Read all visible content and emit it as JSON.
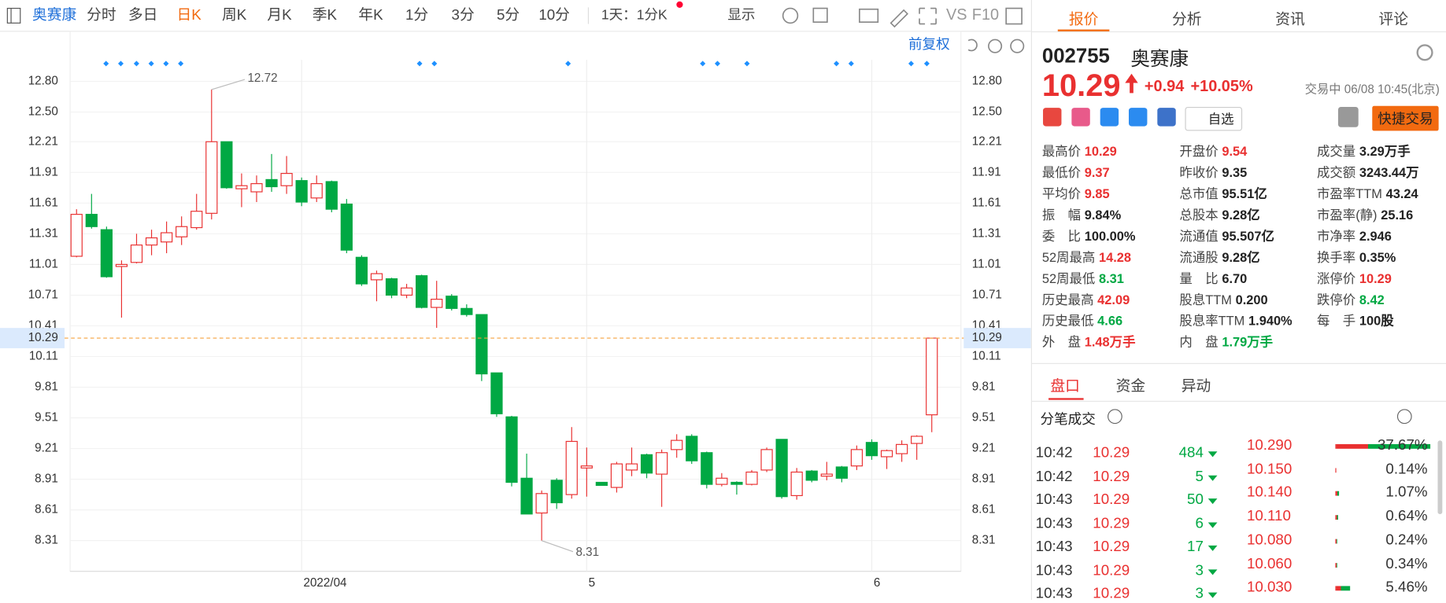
{
  "toolbar": {
    "stock": "奥赛康",
    "periods": [
      "分时",
      "多日",
      "日K",
      "周K",
      "月K",
      "季K",
      "年K",
      "1分",
      "3分",
      "5分",
      "10分"
    ],
    "interval": "1天：1分K",
    "display": "显示",
    "vs": "VS",
    "f10": "F10"
  },
  "chart_header": {
    "adjust": "前复权"
  },
  "chart_data": {
    "type": "candlestick",
    "categories": [
      null,
      null,
      null,
      null,
      null,
      null,
      null,
      null,
      null,
      null,
      null,
      null,
      null,
      null,
      null,
      "2022/04",
      null,
      null,
      null,
      null,
      null,
      null,
      null,
      null,
      null,
      null,
      null,
      null,
      null,
      null,
      null,
      null,
      null,
      null,
      "5",
      null,
      null,
      null,
      null,
      null,
      null,
      null,
      null,
      null,
      null,
      null,
      null,
      null,
      null,
      null,
      null,
      null,
      null,
      "6",
      null,
      null,
      null,
      null
    ],
    "open": [
      11.09,
      11.5,
      11.35,
      10.99,
      11.03,
      11.2,
      11.23,
      11.28,
      11.37,
      11.51,
      12.21,
      11.75,
      11.72,
      11.84,
      11.78,
      11.83,
      11.66,
      11.82,
      11.6,
      11.08,
      10.86,
      10.87,
      10.71,
      10.9,
      10.59,
      10.7,
      10.58,
      10.52,
      9.95,
      9.52,
      8.92,
      8.58,
      8.9,
      8.76,
      9.02,
      8.88,
      8.83,
      9.0,
      9.15,
      8.96,
      9.2,
      9.33,
      9.17,
      8.86,
      8.88,
      8.86,
      9.0,
      9.3,
      8.75,
      8.99,
      8.94,
      9.03,
      9.04,
      9.27,
      9.13,
      9.16,
      9.26,
      9.54
    ],
    "high": [
      11.55,
      11.7,
      11.38,
      11.05,
      11.31,
      11.35,
      11.43,
      11.48,
      11.7,
      12.72,
      12.21,
      11.9,
      11.88,
      12.09,
      12.07,
      11.86,
      11.88,
      11.83,
      11.65,
      11.1,
      10.95,
      10.88,
      10.82,
      10.91,
      10.85,
      10.72,
      10.62,
      10.52,
      9.95,
      9.53,
      9.16,
      8.8,
      8.92,
      9.42,
      9.22,
      8.88,
      9.08,
      9.22,
      9.16,
      9.2,
      9.35,
      9.35,
      9.18,
      8.97,
      8.89,
      9.0,
      9.22,
      9.3,
      9.02,
      9.0,
      9.08,
      9.04,
      9.24,
      9.3,
      9.2,
      9.29,
      9.34,
      10.29
    ],
    "low": [
      11.08,
      11.36,
      10.88,
      10.49,
      11.02,
      11.1,
      11.12,
      11.2,
      11.35,
      11.45,
      11.75,
      11.57,
      11.62,
      11.72,
      11.7,
      11.58,
      11.62,
      11.52,
      11.12,
      10.8,
      10.65,
      10.68,
      10.68,
      10.58,
      10.39,
      10.56,
      10.5,
      9.87,
      9.52,
      8.84,
      8.57,
      8.31,
      8.62,
      8.72,
      8.74,
      8.85,
      8.78,
      8.94,
      8.92,
      8.64,
      9.12,
      9.06,
      8.82,
      8.84,
      8.76,
      8.85,
      8.98,
      8.72,
      8.71,
      8.88,
      8.9,
      8.88,
      9.0,
      9.1,
      9.01,
      9.08,
      9.1,
      9.37
    ],
    "close": [
      11.5,
      11.38,
      10.89,
      11.01,
      11.2,
      11.27,
      11.32,
      11.38,
      11.53,
      12.21,
      11.76,
      11.78,
      11.8,
      11.77,
      11.9,
      11.62,
      11.8,
      11.55,
      11.15,
      10.82,
      10.92,
      10.71,
      10.78,
      10.59,
      10.67,
      10.58,
      10.52,
      9.94,
      9.55,
      8.88,
      8.57,
      8.77,
      8.68,
      9.28,
      9.04,
      8.85,
      9.06,
      9.06,
      8.97,
      9.17,
      9.29,
      9.09,
      8.86,
      8.92,
      8.86,
      8.98,
      9.2,
      8.74,
      8.98,
      8.9,
      8.96,
      8.92,
      9.2,
      9.14,
      9.19,
      9.25,
      9.33,
      10.29
    ],
    "up_color": "#e93030",
    "down_color": "#00a843",
    "ylim": [
      8.01,
      13.01
    ],
    "yticks": [
      {
        "value": 12.8,
        "label": "12.80"
      },
      {
        "value": 12.5,
        "label": "12.50"
      },
      12.21,
      11.91,
      11.61,
      11.31,
      11.01,
      10.71,
      10.41,
      10.11,
      9.81,
      9.51,
      9.21,
      8.91,
      8.61,
      8.31
    ],
    "grid": true,
    "current_price": 10.29,
    "max_label": 12.72,
    "min_label": 8.31
  },
  "quote": {
    "tabs": [
      "报价",
      "分析",
      "资讯",
      "评论"
    ],
    "code": "002755",
    "name": "奥赛康",
    "price": 10.29,
    "change": "+0.94",
    "change_pct": "+10.05%",
    "status": "交易中 06/08 10:45(北京)",
    "watch": "自选",
    "trade": "快捷交易",
    "stats": [
      [
        {
          "label": "最高价",
          "value": "10.29",
          "color": "#e93030"
        },
        {
          "label": "开盘价",
          "value": "9.54",
          "color": "#e93030"
        },
        {
          "label": "成交量",
          "value": "3.29万手"
        }
      ],
      [
        {
          "label": "最低价",
          "value": "9.37",
          "color": "#e93030"
        },
        {
          "label": "昨收价",
          "value": "9.35"
        },
        {
          "label": "成交额",
          "value": "3243.44万"
        }
      ],
      [
        {
          "label": "平均价",
          "value": "9.85",
          "color": "#e93030"
        },
        {
          "label": "总市值",
          "value": "95.51亿"
        },
        {
          "label": "市盈率TTM",
          "value": "43.24"
        }
      ],
      [
        {
          "label": "振　幅",
          "value": "9.84%"
        },
        {
          "label": "总股本",
          "value": "9.28亿"
        },
        {
          "label": "市盈率(静)",
          "value": "25.16"
        }
      ],
      [
        {
          "label": "委　比",
          "value": "100.00%"
        },
        {
          "label": "流通值",
          "value": "95.507亿"
        },
        {
          "label": "市净率",
          "value": "2.946"
        }
      ],
      [
        {
          "label": "52周最高",
          "value": "14.28",
          "color": "#e93030"
        },
        {
          "label": "流通股",
          "value": "9.28亿"
        },
        {
          "label": "换手率",
          "value": "0.35%"
        }
      ],
      [
        {
          "label": "52周最低",
          "value": "8.31",
          "color": "#00a843"
        },
        {
          "label": "量　比",
          "value": "6.70"
        },
        {
          "label": "涨停价",
          "value": "10.29",
          "color": "#e93030"
        }
      ],
      [
        {
          "label": "历史最高",
          "value": "42.09",
          "color": "#e93030"
        },
        {
          "label": "股息TTM",
          "value": "0.200"
        },
        {
          "label": "跌停价",
          "value": "8.42",
          "color": "#00a843"
        }
      ],
      [
        {
          "label": "历史最低",
          "value": "4.66",
          "color": "#00a843"
        },
        {
          "label": "股息率TTM",
          "value": "1.940%"
        },
        {
          "label": "每　手",
          "value": "100股"
        }
      ],
      [
        {
          "label": "外　盘",
          "value": "1.48万手",
          "color": "#e93030"
        },
        {
          "label": "内　盘",
          "value": "1.79万手",
          "color": "#00a843"
        }
      ]
    ]
  },
  "lower_tabs": [
    "盘口",
    "资金",
    "异动"
  ],
  "ticks_title": "分笔成交",
  "trades": [
    [
      "10:42",
      "10.29",
      "484"
    ],
    [
      "10:42",
      "10.29",
      "5"
    ],
    [
      "10:43",
      "10.29",
      "50"
    ],
    [
      "10:43",
      "10.29",
      "6"
    ],
    [
      "10:43",
      "10.29",
      "17"
    ],
    [
      "10:43",
      "10.29",
      "3"
    ],
    [
      "10:43",
      "10.29",
      "3"
    ]
  ],
  "distribution": {
    "prices": [
      "10.290",
      "10.150",
      "10.140",
      "10.110",
      "10.080",
      "10.060",
      "10.030"
    ],
    "values": [
      37.67,
      0.14,
      1.07,
      0.64,
      0.24,
      0.34,
      5.46
    ],
    "value_labels": [
      "37.67%",
      "0.14%",
      "1.07%",
      "0.64%",
      "0.24%",
      "0.34%",
      "5.46%"
    ]
  }
}
